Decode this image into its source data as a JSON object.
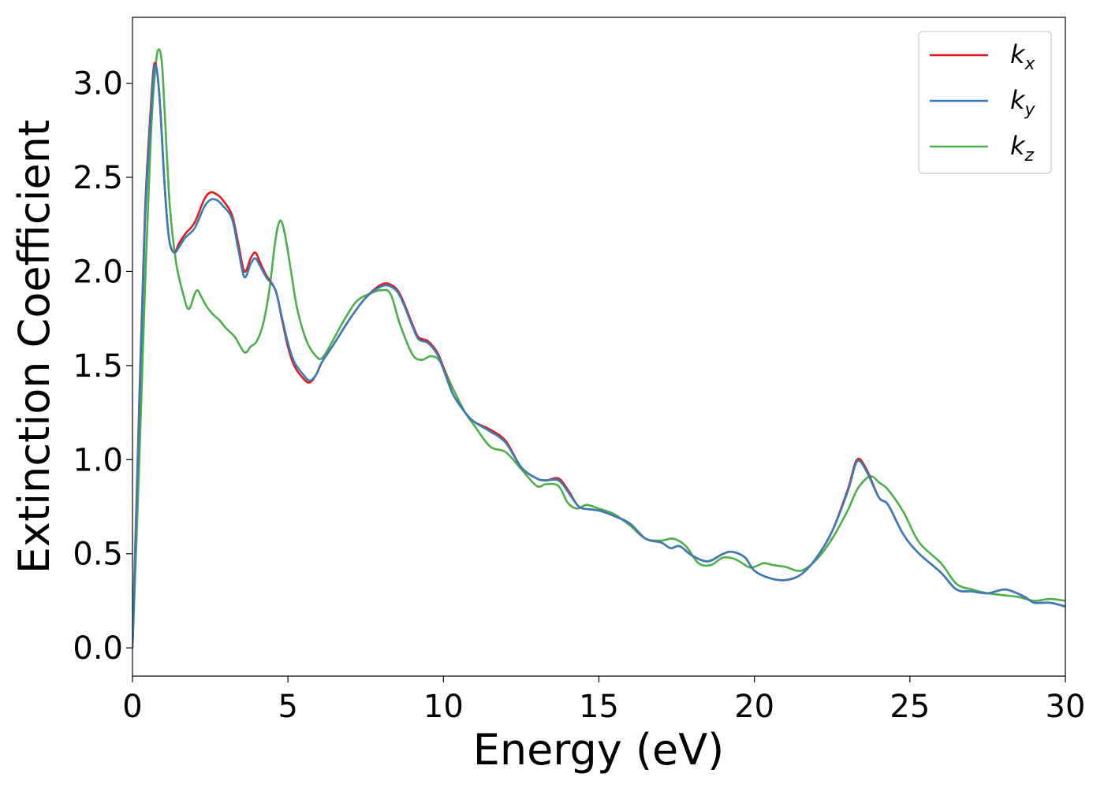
{
  "chart_data": {
    "type": "line",
    "title": "",
    "xlabel": "Energy (eV)",
    "ylabel": "Extinction Coefficient",
    "xlim": [
      0,
      30
    ],
    "ylim": [
      -0.15,
      3.35
    ],
    "xticks": [
      0,
      5,
      10,
      15,
      20,
      25,
      30
    ],
    "yticks": [
      0.0,
      0.5,
      1.0,
      1.5,
      2.0,
      2.5,
      3.0
    ],
    "xtick_labels": [
      "0",
      "5",
      "10",
      "15",
      "20",
      "25",
      "30"
    ],
    "ytick_labels": [
      "0.0",
      "0.5",
      "1.0",
      "1.5",
      "2.0",
      "2.5",
      "3.0"
    ],
    "grid": false,
    "legend_position": "top-right",
    "series": [
      {
        "name": "k_x",
        "label_main": "k",
        "label_sub": "x",
        "color": "#e41a1c",
        "x": [
          0,
          0.2,
          0.4,
          0.6,
          0.7,
          0.8,
          0.9,
          1.0,
          1.1,
          1.2,
          1.35,
          1.5,
          1.7,
          2.0,
          2.3,
          2.5,
          2.7,
          2.9,
          3.2,
          3.4,
          3.6,
          3.8,
          3.95,
          4.1,
          4.3,
          4.6,
          4.8,
          5.0,
          5.2,
          5.5,
          5.7,
          5.9,
          6.1,
          6.5,
          7.0,
          7.5,
          8.0,
          8.3,
          8.6,
          9.0,
          9.2,
          9.5,
          9.8,
          10.0,
          10.3,
          10.7,
          11.0,
          11.5,
          12.0,
          12.5,
          13.0,
          13.3,
          13.7,
          14.0,
          14.3,
          14.5,
          15.0,
          15.5,
          16.0,
          16.5,
          17.0,
          17.3,
          17.6,
          18.0,
          18.5,
          19.0,
          19.3,
          19.7,
          20.0,
          20.5,
          21.0,
          21.5,
          22.0,
          22.5,
          23.0,
          23.3,
          23.6,
          24.0,
          24.3,
          24.8,
          25.3,
          26.0,
          26.5,
          27.0,
          27.5,
          28.0,
          28.3,
          28.7,
          29.0,
          29.5,
          30.0
        ],
        "y": [
          0.0,
          1.2,
          2.3,
          2.9,
          3.1,
          3.05,
          2.85,
          2.55,
          2.3,
          2.15,
          2.1,
          2.15,
          2.2,
          2.26,
          2.38,
          2.42,
          2.41,
          2.38,
          2.3,
          2.15,
          2.0,
          2.07,
          2.1,
          2.05,
          1.98,
          1.9,
          1.75,
          1.6,
          1.5,
          1.43,
          1.41,
          1.45,
          1.52,
          1.62,
          1.75,
          1.86,
          1.93,
          1.93,
          1.88,
          1.72,
          1.65,
          1.63,
          1.57,
          1.49,
          1.35,
          1.25,
          1.2,
          1.16,
          1.1,
          0.96,
          0.9,
          0.89,
          0.9,
          0.84,
          0.76,
          0.74,
          0.73,
          0.7,
          0.66,
          0.58,
          0.56,
          0.53,
          0.54,
          0.49,
          0.46,
          0.5,
          0.51,
          0.48,
          0.41,
          0.37,
          0.36,
          0.39,
          0.48,
          0.62,
          0.84,
          1.0,
          0.95,
          0.8,
          0.76,
          0.6,
          0.5,
          0.4,
          0.31,
          0.3,
          0.29,
          0.31,
          0.3,
          0.27,
          0.24,
          0.24,
          0.22
        ]
      },
      {
        "name": "k_y",
        "label_main": "k",
        "label_sub": "y",
        "color": "#377eb8",
        "x": [
          0,
          0.2,
          0.4,
          0.6,
          0.7,
          0.8,
          0.9,
          1.0,
          1.1,
          1.2,
          1.35,
          1.5,
          1.7,
          2.0,
          2.3,
          2.5,
          2.7,
          2.9,
          3.2,
          3.4,
          3.6,
          3.8,
          3.95,
          4.1,
          4.3,
          4.6,
          4.8,
          5.0,
          5.2,
          5.5,
          5.7,
          5.9,
          6.1,
          6.5,
          7.0,
          7.5,
          8.0,
          8.3,
          8.6,
          9.0,
          9.2,
          9.5,
          9.8,
          10.0,
          10.3,
          10.7,
          11.0,
          11.5,
          12.0,
          12.5,
          13.0,
          13.3,
          13.7,
          14.0,
          14.3,
          14.5,
          15.0,
          15.5,
          16.0,
          16.5,
          17.0,
          17.3,
          17.6,
          18.0,
          18.5,
          19.0,
          19.3,
          19.7,
          20.0,
          20.5,
          21.0,
          21.5,
          22.0,
          22.5,
          23.0,
          23.3,
          23.6,
          24.0,
          24.3,
          24.8,
          25.3,
          26.0,
          26.5,
          27.0,
          27.5,
          28.0,
          28.3,
          28.7,
          29.0,
          29.5,
          30.0
        ],
        "y": [
          0.0,
          1.15,
          2.25,
          2.85,
          3.08,
          3.05,
          2.85,
          2.55,
          2.3,
          2.15,
          2.1,
          2.13,
          2.18,
          2.23,
          2.34,
          2.38,
          2.38,
          2.35,
          2.28,
          2.12,
          1.97,
          2.04,
          2.07,
          2.03,
          1.97,
          1.9,
          1.76,
          1.62,
          1.52,
          1.45,
          1.42,
          1.45,
          1.52,
          1.62,
          1.75,
          1.86,
          1.92,
          1.92,
          1.87,
          1.71,
          1.64,
          1.62,
          1.56,
          1.48,
          1.35,
          1.25,
          1.2,
          1.15,
          1.09,
          0.96,
          0.9,
          0.89,
          0.89,
          0.83,
          0.76,
          0.74,
          0.73,
          0.7,
          0.66,
          0.58,
          0.56,
          0.53,
          0.54,
          0.49,
          0.46,
          0.5,
          0.51,
          0.48,
          0.41,
          0.37,
          0.36,
          0.39,
          0.48,
          0.62,
          0.83,
          0.99,
          0.94,
          0.8,
          0.76,
          0.6,
          0.5,
          0.4,
          0.31,
          0.3,
          0.29,
          0.31,
          0.3,
          0.27,
          0.24,
          0.24,
          0.22
        ]
      },
      {
        "name": "k_z",
        "label_main": "k",
        "label_sub": "z",
        "color": "#4daf4a",
        "x": [
          0,
          0.2,
          0.4,
          0.6,
          0.75,
          0.85,
          0.95,
          1.05,
          1.2,
          1.4,
          1.6,
          1.8,
          2.0,
          2.1,
          2.2,
          2.4,
          2.6,
          2.8,
          3.0,
          3.3,
          3.6,
          3.8,
          4.0,
          4.2,
          4.4,
          4.6,
          4.75,
          4.9,
          5.1,
          5.3,
          5.6,
          5.9,
          6.1,
          6.4,
          6.8,
          7.2,
          7.6,
          8.0,
          8.3,
          8.6,
          9.0,
          9.3,
          9.6,
          9.9,
          10.3,
          10.7,
          11.0,
          11.5,
          12.0,
          12.5,
          13.0,
          13.3,
          13.7,
          14.0,
          14.3,
          14.6,
          15.0,
          15.5,
          16.0,
          16.5,
          17.0,
          17.4,
          17.8,
          18.2,
          18.6,
          19.0,
          19.4,
          19.8,
          20.0,
          20.3,
          20.6,
          21.0,
          21.5,
          22.0,
          22.5,
          23.0,
          23.3,
          23.6,
          23.8,
          24.0,
          24.3,
          24.8,
          25.3,
          26.0,
          26.5,
          27.0,
          27.5,
          28.0,
          28.5,
          29.0,
          29.5,
          30.0
        ],
        "y": [
          0.0,
          0.9,
          1.9,
          2.75,
          3.1,
          3.18,
          3.1,
          2.8,
          2.35,
          2.05,
          1.9,
          1.8,
          1.88,
          1.9,
          1.87,
          1.81,
          1.77,
          1.74,
          1.7,
          1.65,
          1.57,
          1.6,
          1.63,
          1.72,
          1.9,
          2.17,
          2.27,
          2.2,
          2.0,
          1.8,
          1.63,
          1.55,
          1.54,
          1.62,
          1.74,
          1.84,
          1.88,
          1.9,
          1.88,
          1.72,
          1.56,
          1.53,
          1.55,
          1.52,
          1.38,
          1.25,
          1.18,
          1.07,
          1.04,
          0.95,
          0.86,
          0.87,
          0.86,
          0.77,
          0.74,
          0.76,
          0.74,
          0.71,
          0.65,
          0.58,
          0.57,
          0.58,
          0.54,
          0.45,
          0.44,
          0.48,
          0.47,
          0.43,
          0.43,
          0.45,
          0.44,
          0.43,
          0.41,
          0.47,
          0.58,
          0.73,
          0.84,
          0.9,
          0.91,
          0.88,
          0.84,
          0.72,
          0.56,
          0.45,
          0.34,
          0.31,
          0.29,
          0.28,
          0.27,
          0.25,
          0.26,
          0.25
        ]
      }
    ]
  }
}
